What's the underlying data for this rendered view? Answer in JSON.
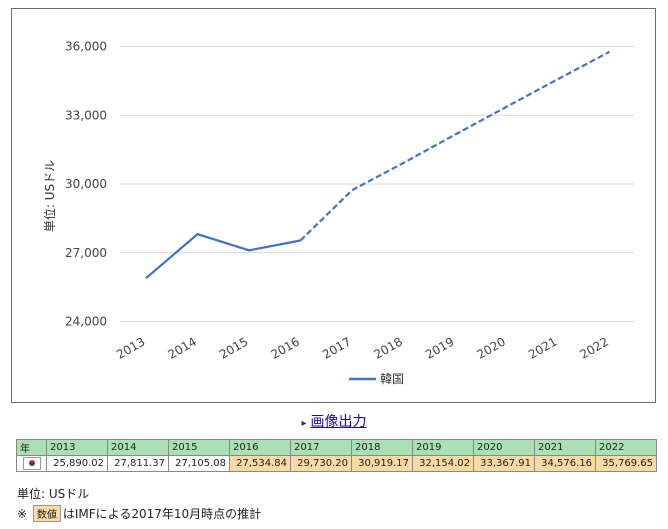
{
  "chart_data": {
    "type": "line",
    "ylabel": "単位: USドル",
    "ylim": [
      22800,
      37200
    ],
    "yticks": [
      24000,
      27000,
      30000,
      33000,
      36000
    ],
    "ytick_labels": [
      "24,000",
      "27,000",
      "30,000",
      "33,000",
      "36,000"
    ],
    "categories": [
      "2013",
      "2014",
      "2015",
      "2016",
      "2017",
      "2018",
      "2019",
      "2020",
      "2021",
      "2022"
    ],
    "grid": true,
    "legend_position": "bottom",
    "series": [
      {
        "name": "韓国",
        "color": "#4472c4",
        "values": [
          25890.02,
          27811.37,
          27105.08,
          27534.84,
          29730.2,
          30919.17,
          32154.02,
          33367.91,
          34576.16,
          35769.65
        ],
        "estimated_from_index": 3
      }
    ]
  },
  "export": {
    "label": "画像出力"
  },
  "table": {
    "header_label": "年",
    "years": [
      "2013",
      "2014",
      "2015",
      "2016",
      "2017",
      "2018",
      "2019",
      "2020",
      "2021",
      "2022"
    ],
    "values": [
      "25,890.02",
      "27,811.37",
      "27,105.08",
      "27,534.84",
      "29,730.20",
      "30,919.17",
      "32,154.02",
      "33,367.91",
      "34,576.16",
      "35,769.65"
    ],
    "estimated": [
      false,
      false,
      false,
      true,
      true,
      true,
      true,
      true,
      true,
      true
    ]
  },
  "notes": {
    "unit": "単位: USドル",
    "mark": "※",
    "badge": "数値",
    "estimate_text": "はIMFによる2017年10月時点の推計"
  }
}
